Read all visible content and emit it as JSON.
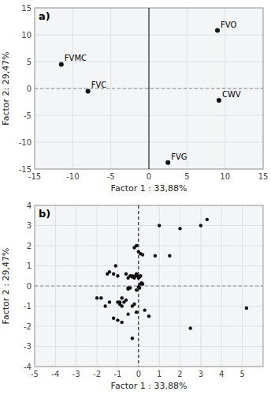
{
  "chart_data": [
    {
      "type": "scatter",
      "title": "a)",
      "x": [
        9.0,
        -11.5,
        -8.0,
        9.2,
        2.5
      ],
      "values": [
        10.8,
        4.5,
        -0.5,
        -2.2,
        -13.8
      ],
      "annotations": [
        "FVO",
        "FVMC",
        "FVC",
        "CWV",
        "FVG"
      ],
      "color": "#111111",
      "xlim": [
        -15,
        15
      ],
      "ylim": [
        -15,
        15
      ],
      "xticks": [
        -15,
        -10,
        -5,
        0,
        5,
        10,
        15
      ],
      "yticks": [
        -15,
        -10,
        -5,
        0,
        5,
        10,
        15
      ],
      "x_label": "Factor 1 : 33,88%",
      "y_label": "Factor 2: 29,47%",
      "reference_lines": [
        {
          "axis": "x",
          "value": 0,
          "line_style": "solid"
        },
        {
          "axis": "y",
          "value": 0,
          "line_style": "dashed"
        }
      ],
      "grid": true
    },
    {
      "type": "scatter",
      "title": "b)",
      "x": [
        -0.5,
        -0.4,
        -0.3,
        -0.2,
        -0.15,
        -0.1,
        -0.05,
        0.0,
        0.05,
        0.1,
        -1.0,
        -0.9,
        -0.8,
        -0.7,
        -0.6,
        -0.5,
        -0.4,
        -0.3,
        -0.2,
        -0.1,
        -1.5,
        -1.4,
        -1.2,
        -1.1,
        -1.0,
        -0.9,
        -0.8,
        -0.6,
        -0.5,
        -0.3,
        -2.0,
        -1.8,
        -1.6,
        -1.4,
        -1.2,
        -1.0,
        -0.8,
        -0.5,
        -0.3,
        -0.1,
        0.0,
        0.05,
        0.1,
        0.15,
        0.2,
        0.3,
        0.5,
        0.8,
        1.0,
        1.5,
        2.0,
        2.5,
        3.0,
        3.3,
        5.2,
        -0.2,
        -0.1,
        0.0,
        0.1,
        0.2
      ],
      "values": [
        0.4,
        0.5,
        0.45,
        0.4,
        0.5,
        0.6,
        0.5,
        0.4,
        0.45,
        0.5,
        -0.8,
        -0.9,
        -1.0,
        -0.8,
        -0.7,
        -0.15,
        -0.1,
        -1.0,
        -0.9,
        -1.3,
        0.6,
        0.7,
        0.6,
        1.0,
        0.5,
        -0.8,
        -0.6,
        0.6,
        -0.1,
        0.5,
        -0.6,
        -0.6,
        -1.0,
        -0.8,
        -1.6,
        -1.7,
        -1.8,
        -1.4,
        -2.6,
        -0.2,
        -0.05,
        -0.1,
        0.1,
        0.15,
        0.1,
        -1.2,
        -1.5,
        1.5,
        3.0,
        1.5,
        2.85,
        -2.1,
        3.0,
        3.3,
        -1.1,
        1.9,
        2.0,
        1.7,
        1.6,
        1.55
      ],
      "color": "#111111",
      "xlim": [
        -5,
        6
      ],
      "ylim": [
        -4,
        4
      ],
      "xticks": [
        -5,
        -4,
        -3,
        -2,
        -1,
        0,
        1,
        2,
        3,
        4,
        5
      ],
      "yticks": [
        -4,
        -3,
        -2,
        -1,
        0,
        1,
        2,
        3,
        4
      ],
      "x_label": "Factor 1 : 33,88%",
      "y_label": "Factor 2 : 29,47%",
      "reference_lines": [
        {
          "axis": "x",
          "value": 0,
          "line_style": "dashed"
        },
        {
          "axis": "y",
          "value": 0,
          "line_style": "dashed"
        }
      ],
      "grid": true
    }
  ]
}
